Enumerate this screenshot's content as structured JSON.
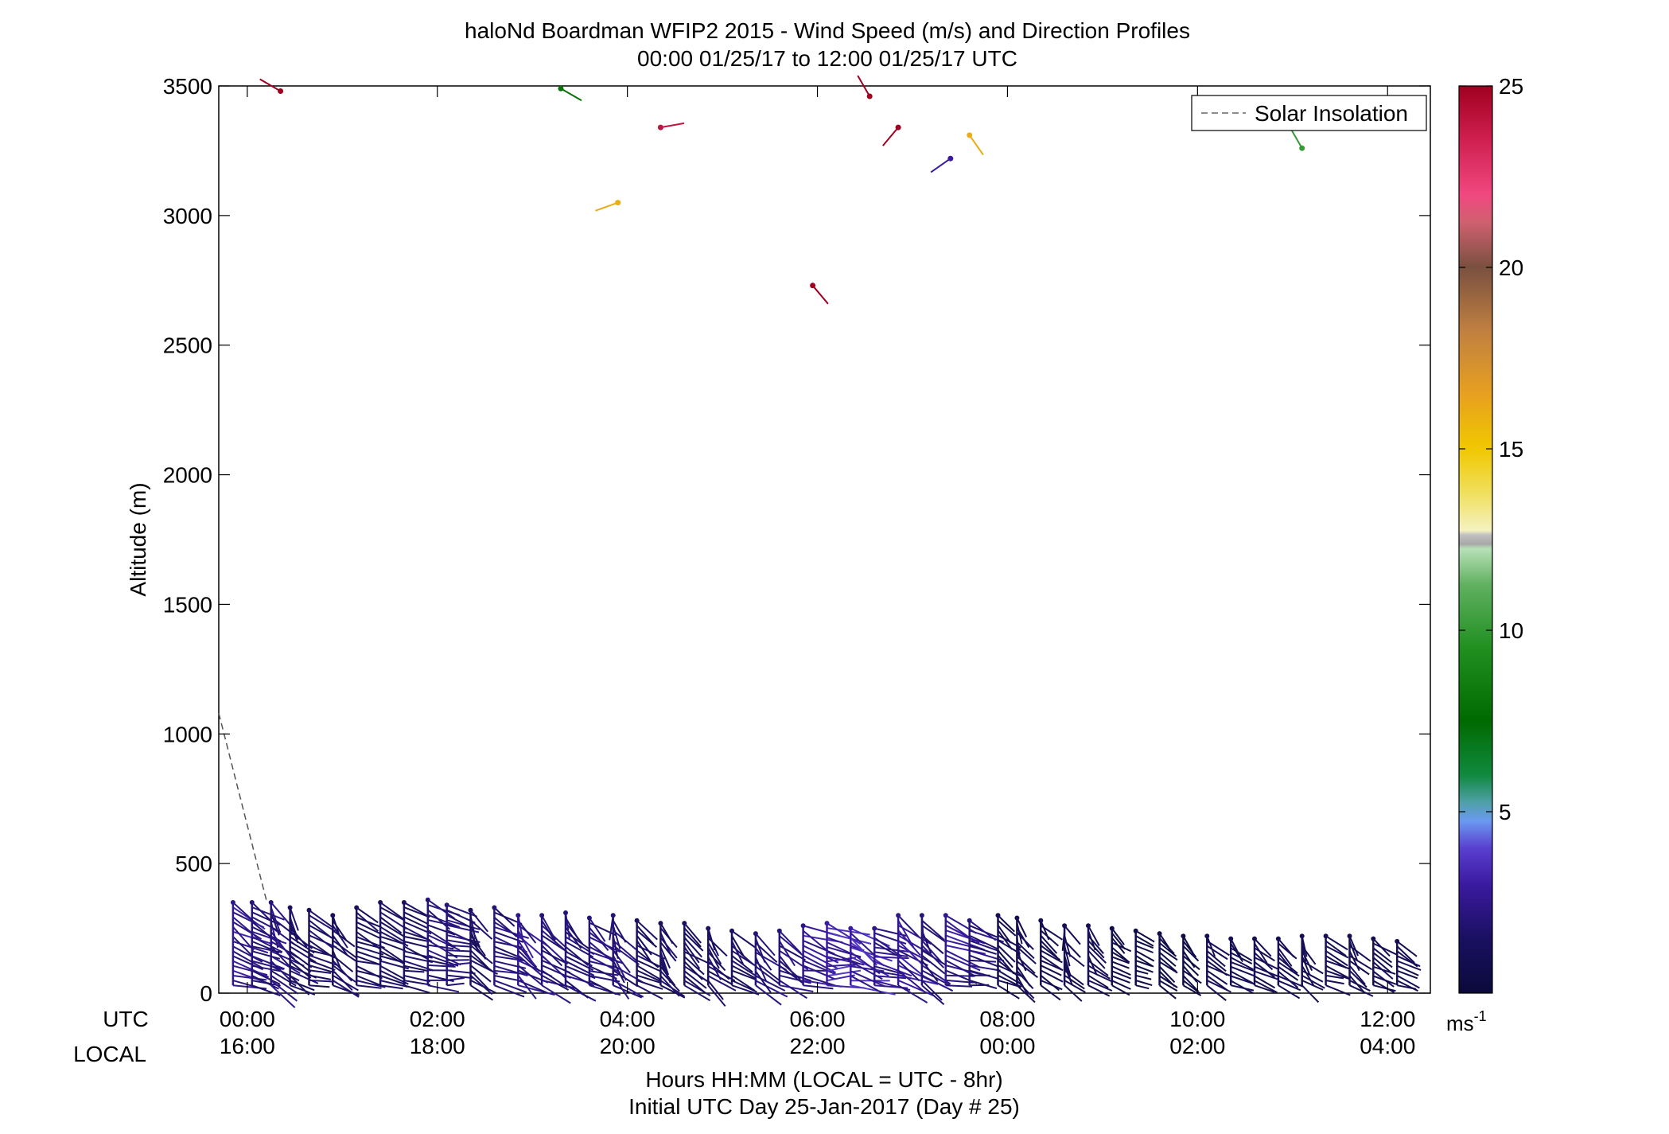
{
  "chart_data": {
    "type": "wind-barb-profile",
    "title": "haloNd Boardman WFIP2 2015 - Wind Speed (m/s) and Direction Profiles",
    "subtitle": "00:00 01/25/17 to 12:00 01/25/17  UTC",
    "ylabel": "Altitude (m)",
    "xlabel": "Hours HH:MM  (LOCAL = UTC - 8hr)",
    "xlabel2": "Initial UTC Day 25-Jan-2017 (Day # 25)",
    "row_label_utc": "UTC",
    "row_label_local": "LOCAL",
    "ylim": [
      0,
      3500
    ],
    "xlim_hours": [
      -0.3,
      12.45
    ],
    "yticks": [
      "0",
      "500",
      "1000",
      "1500",
      "2000",
      "2500",
      "3000",
      "3500"
    ],
    "ytick_values": [
      0,
      500,
      1000,
      1500,
      2000,
      2500,
      3000,
      3500
    ],
    "xticks_utc": [
      "00:00",
      "02:00",
      "04:00",
      "06:00",
      "08:00",
      "10:00",
      "12:00"
    ],
    "xticks_local": [
      "16:00",
      "18:00",
      "20:00",
      "22:00",
      "00:00",
      "02:00",
      "04:00"
    ],
    "xtick_hours": [
      0,
      2,
      4,
      6,
      8,
      10,
      12
    ],
    "legend": {
      "label": "Solar Insolation",
      "position": "top-right",
      "line_color": "#666666"
    },
    "colorbar": {
      "min": 0,
      "max": 25,
      "ticks": [
        "5",
        "10",
        "15",
        "20",
        "25"
      ],
      "tick_values": [
        5,
        10,
        15,
        20,
        25
      ],
      "unit_label": "ms",
      "unit_exponent": "-1"
    },
    "solar_insolation": [
      {
        "hour": -0.3,
        "alt": 1080
      },
      {
        "hour": 0.2,
        "alt": 360
      }
    ],
    "profile_hours": [
      -0.15,
      0.05,
      0.25,
      0.45,
      0.65,
      0.9,
      1.15,
      1.4,
      1.65,
      1.9,
      2.1,
      2.35,
      2.6,
      2.85,
      3.1,
      3.35,
      3.6,
      3.85,
      4.1,
      4.35,
      4.6,
      4.85,
      5.1,
      5.35,
      5.6,
      5.85,
      6.1,
      6.35,
      6.6,
      6.85,
      7.1,
      7.35,
      7.6,
      7.9,
      8.1,
      8.35,
      8.6,
      8.85,
      9.1,
      9.35,
      9.6,
      9.85,
      10.1,
      10.35,
      10.6,
      10.85,
      11.1,
      11.35,
      11.6,
      11.85,
      12.1
    ],
    "profile_tops_m": [
      350,
      350,
      350,
      330,
      320,
      300,
      330,
      350,
      350,
      360,
      340,
      320,
      330,
      300,
      300,
      310,
      290,
      300,
      280,
      270,
      270,
      250,
      240,
      230,
      240,
      260,
      270,
      250,
      250,
      300,
      300,
      300,
      280,
      300,
      290,
      280,
      260,
      260,
      250,
      240,
      230,
      220,
      220,
      210,
      210,
      210,
      220,
      220,
      220,
      210,
      200
    ],
    "profile_speeds_ms": [
      2.5,
      2.0,
      2.0,
      1.5,
      1.5,
      1.5,
      1.5,
      1.5,
      1.5,
      2.0,
      2.0,
      1.5,
      2.0,
      2.5,
      2.0,
      2.0,
      2.0,
      2.0,
      1.5,
      1.5,
      1.5,
      1.5,
      1.5,
      2.0,
      2.0,
      2.5,
      3.0,
      3.0,
      2.5,
      2.5,
      2.0,
      2.5,
      2.0,
      1.0,
      1.0,
      1.0,
      1.0,
      1.0,
      0.5,
      0.5,
      0.5,
      0.5,
      1.0,
      1.0,
      1.0,
      1.0,
      1.0,
      1.0,
      1.0,
      1.0,
      1.0
    ],
    "scattered_points": [
      {
        "hour": 0.35,
        "alt": 3480,
        "dir_deg": 300,
        "speed": 25
      },
      {
        "hour": 3.3,
        "alt": 3490,
        "dir_deg": 120,
        "speed": 8
      },
      {
        "hour": 3.9,
        "alt": 3050,
        "dir_deg": 250,
        "speed": 16
      },
      {
        "hour": 4.35,
        "alt": 3340,
        "dir_deg": 80,
        "speed": 24
      },
      {
        "hour": 5.95,
        "alt": 2730,
        "dir_deg": 140,
        "speed": 25
      },
      {
        "hour": 6.55,
        "alt": 3460,
        "dir_deg": 330,
        "speed": 25
      },
      {
        "hour": 6.85,
        "alt": 3340,
        "dir_deg": 220,
        "speed": 25
      },
      {
        "hour": 7.4,
        "alt": 3220,
        "dir_deg": 235,
        "speed": 3
      },
      {
        "hour": 7.6,
        "alt": 3310,
        "dir_deg": 145,
        "speed": 16
      },
      {
        "hour": 11.1,
        "alt": 3260,
        "dir_deg": 330,
        "speed": 10
      }
    ]
  }
}
